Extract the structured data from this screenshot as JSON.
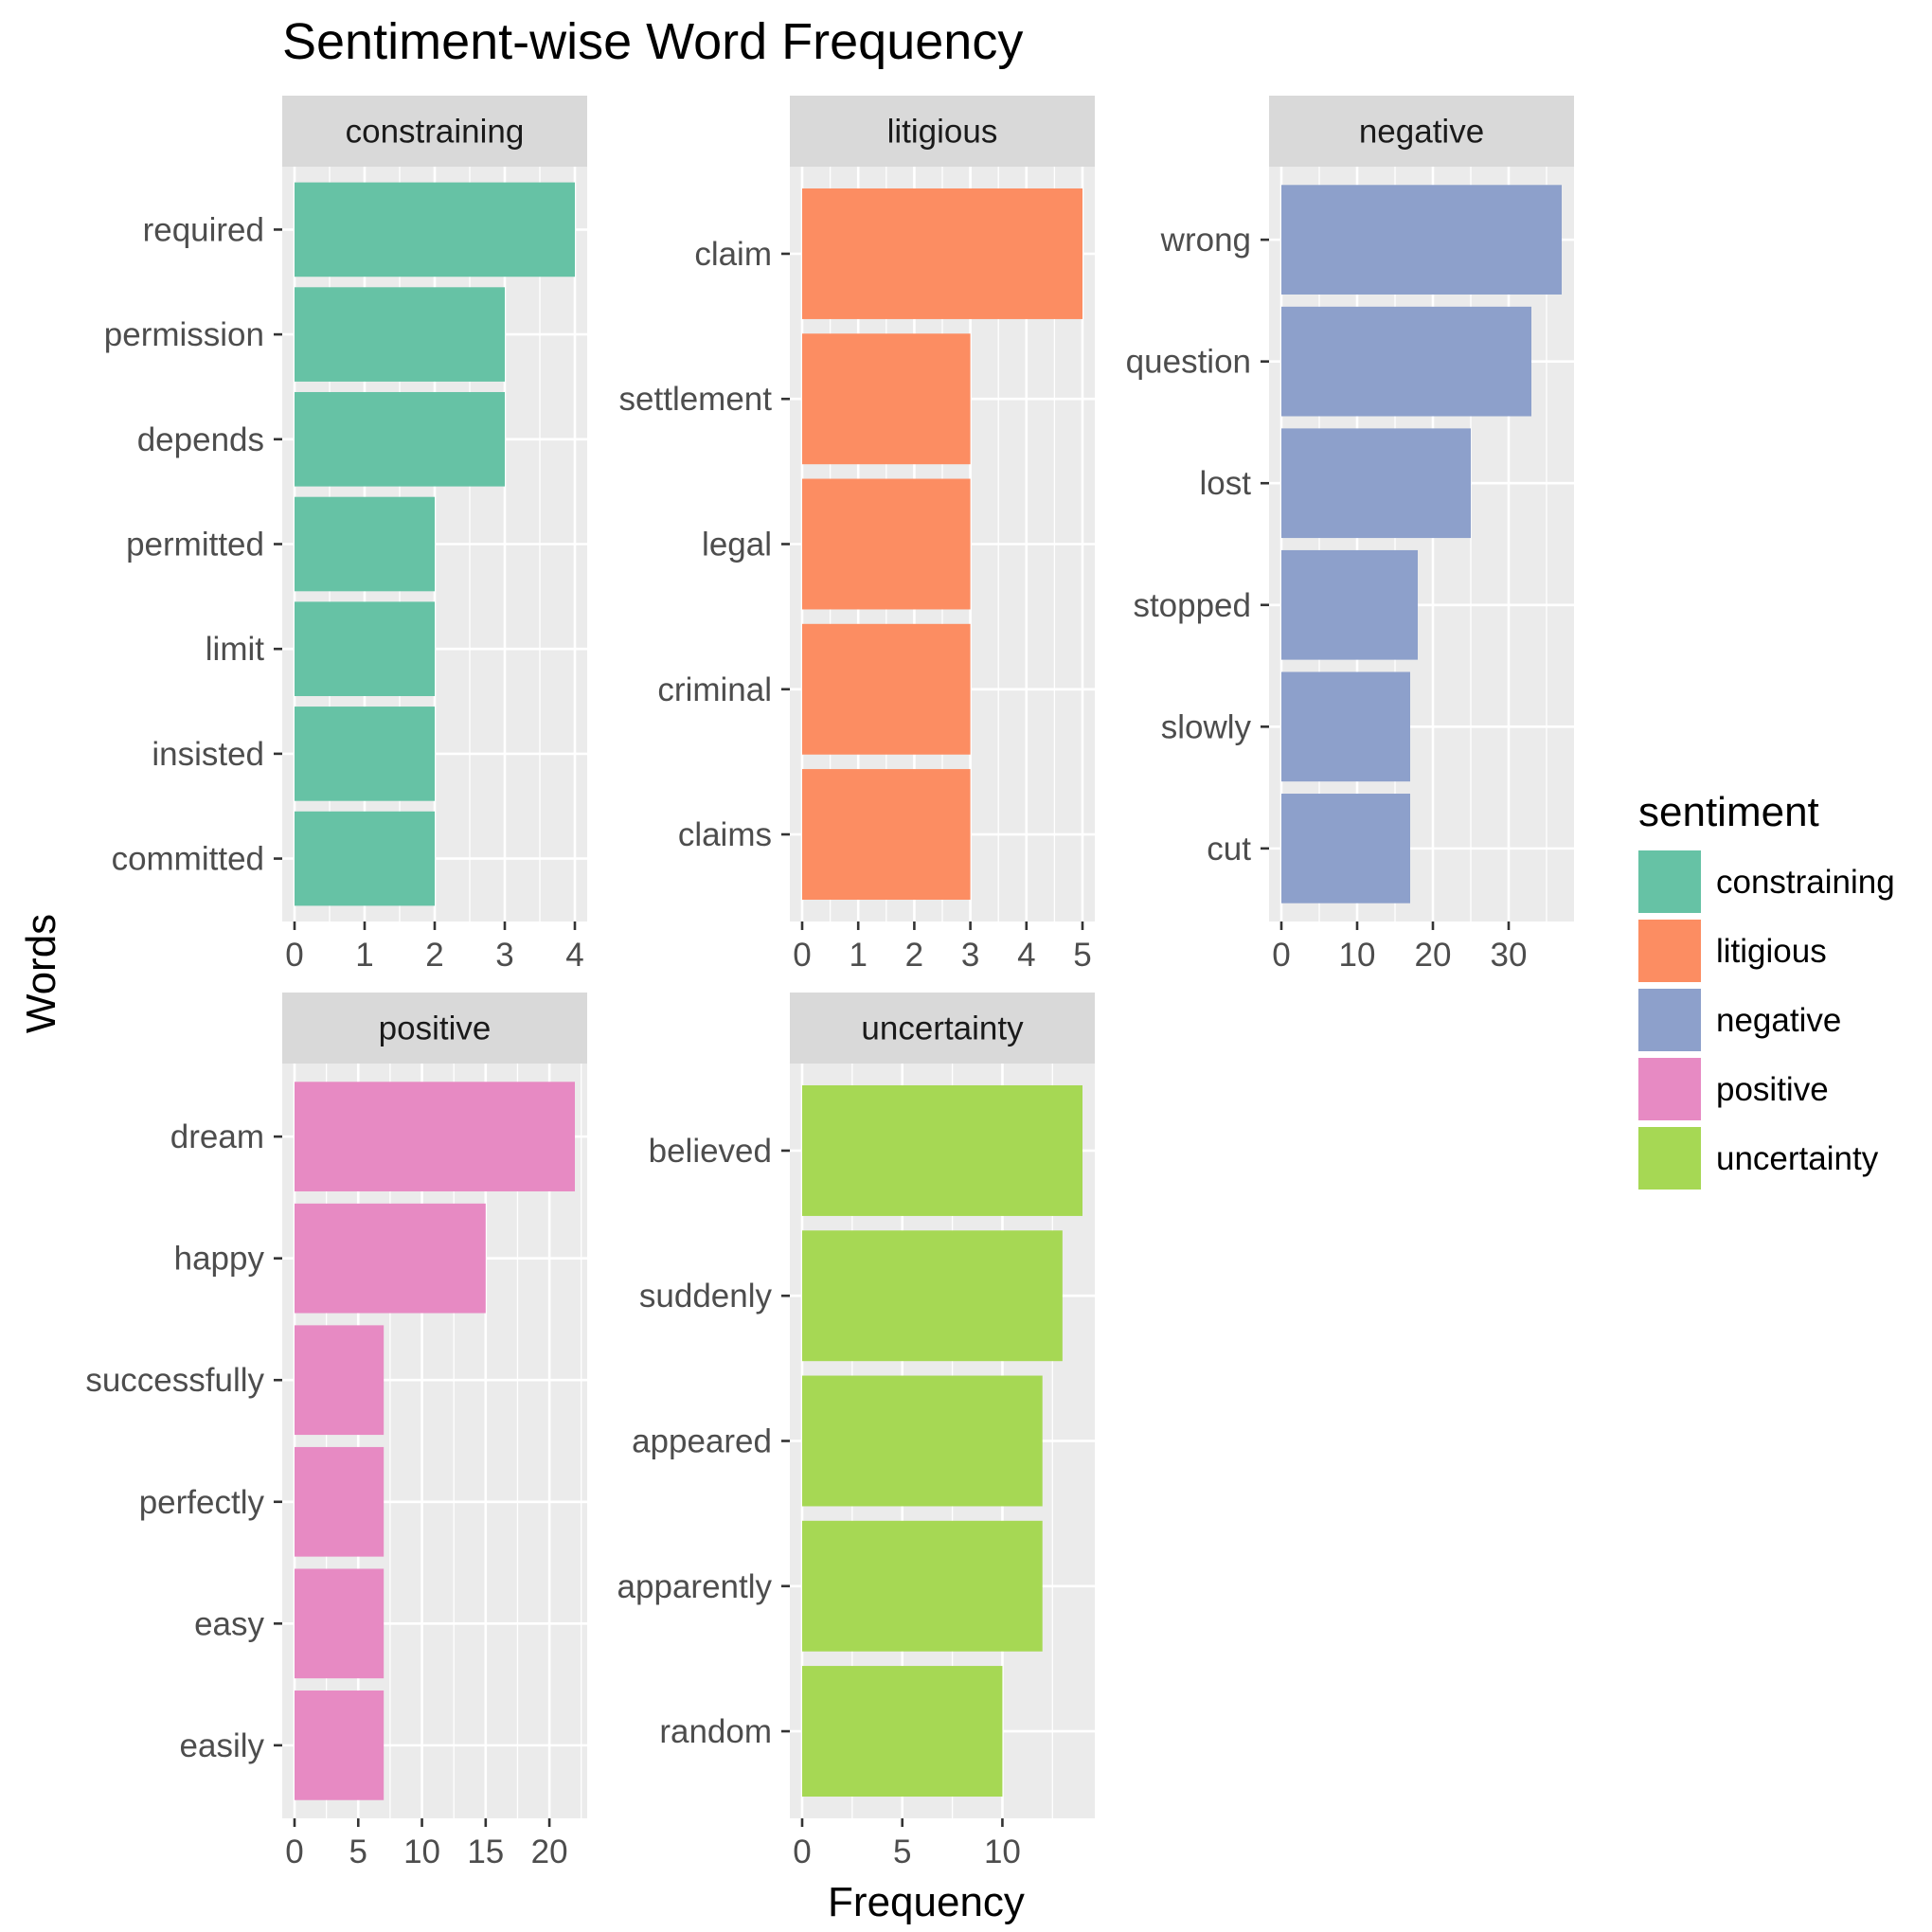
{
  "chart_data": {
    "type": "bar",
    "orientation": "horizontal",
    "title": "Sentiment-wise Word Frequency",
    "xlabel": "Frequency",
    "ylabel": "Words",
    "grid": true,
    "legend": {
      "title": "sentiment",
      "placement": "right",
      "entries": [
        {
          "label": "constraining",
          "color": "#66C2A5"
        },
        {
          "label": "litigious",
          "color": "#FC8D62"
        },
        {
          "label": "negative",
          "color": "#8DA0CB"
        },
        {
          "label": "positive",
          "color": "#E78AC3"
        },
        {
          "label": "uncertainty",
          "color": "#A6D854"
        }
      ]
    },
    "facets": [
      {
        "name": "constraining",
        "color": "#66C2A5",
        "categories": [
          "required",
          "permission",
          "depends",
          "permitted",
          "limit",
          "insisted",
          "committed"
        ],
        "values": [
          4,
          3,
          3,
          2,
          2,
          2,
          2
        ],
        "xlim": [
          0,
          4
        ],
        "xticks": [
          "0",
          "1",
          "2",
          "3",
          "4"
        ]
      },
      {
        "name": "litigious",
        "color": "#FC8D62",
        "categories": [
          "claim",
          "settlement",
          "legal",
          "criminal",
          "claims"
        ],
        "values": [
          5,
          3,
          3,
          3,
          3
        ],
        "xlim": [
          0,
          5
        ],
        "xticks": [
          "0",
          "1",
          "2",
          "3",
          "4",
          "5"
        ]
      },
      {
        "name": "negative",
        "color": "#8DA0CB",
        "categories": [
          "wrong",
          "question",
          "lost",
          "stopped",
          "slowly",
          "cut"
        ],
        "values": [
          37,
          33,
          25,
          18,
          17,
          17
        ],
        "xlim": [
          0,
          37
        ],
        "xticks": [
          "0",
          "10",
          "20",
          "30"
        ]
      },
      {
        "name": "positive",
        "color": "#E78AC3",
        "categories": [
          "dream",
          "happy",
          "successfully",
          "perfectly",
          "easy",
          "easily"
        ],
        "values": [
          22,
          15,
          7,
          7,
          7,
          7
        ],
        "xlim": [
          0,
          22
        ],
        "xticks": [
          "0",
          "5",
          "10",
          "15",
          "20"
        ]
      },
      {
        "name": "uncertainty",
        "color": "#A6D854",
        "categories": [
          "believed",
          "suddenly",
          "appeared",
          "apparently",
          "random"
        ],
        "values": [
          14,
          13,
          12,
          12,
          10
        ],
        "xlim": [
          0,
          14
        ],
        "xticks": [
          "0",
          "5",
          "10"
        ]
      }
    ]
  }
}
